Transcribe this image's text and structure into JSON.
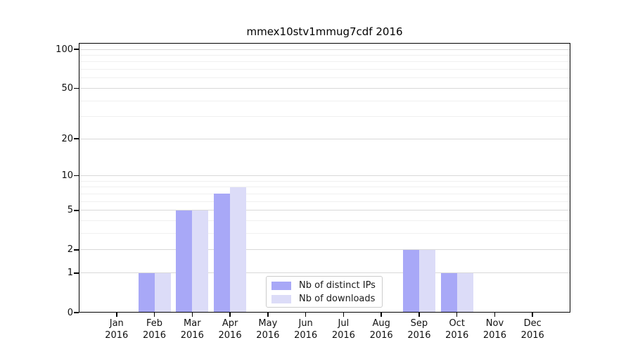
{
  "title": "mmex10stv1mmug7cdf 2016",
  "chart_data": {
    "type": "bar",
    "title": "mmex10stv1mmug7cdf 2016",
    "categories": [
      "Jan",
      "Feb",
      "Mar",
      "Apr",
      "May",
      "Jun",
      "Jul",
      "Aug",
      "Sep",
      "Oct",
      "Nov",
      "Dec"
    ],
    "year_label": "2016",
    "series": [
      {
        "name": "Nb of distinct IPs",
        "color": "#a8a8f7",
        "values": [
          0,
          1,
          5,
          7,
          0,
          0,
          0,
          0,
          2,
          1,
          0,
          0
        ]
      },
      {
        "name": "Nb of downloads",
        "color": "#dcdcf8",
        "values": [
          0,
          1,
          5,
          8,
          0,
          0,
          0,
          0,
          2,
          1,
          0,
          0
        ]
      }
    ],
    "xlabel": "",
    "ylabel": "",
    "yscale": "log1p",
    "ylim": [
      0,
      100
    ],
    "y_major_ticks": [
      0,
      1,
      2,
      5,
      10,
      20,
      50,
      100
    ],
    "y_minor_ticks": [
      3,
      4,
      6,
      7,
      8,
      9,
      30,
      40,
      60,
      70,
      80,
      90
    ],
    "grid": true,
    "legend_position": "inside-bottom-center",
    "colors": {
      "major_grid": "#d9d9d9",
      "minor_grid": "#f0f0f0",
      "axis": "#000000",
      "tick_label": "#111111",
      "background": "#ffffff"
    }
  }
}
